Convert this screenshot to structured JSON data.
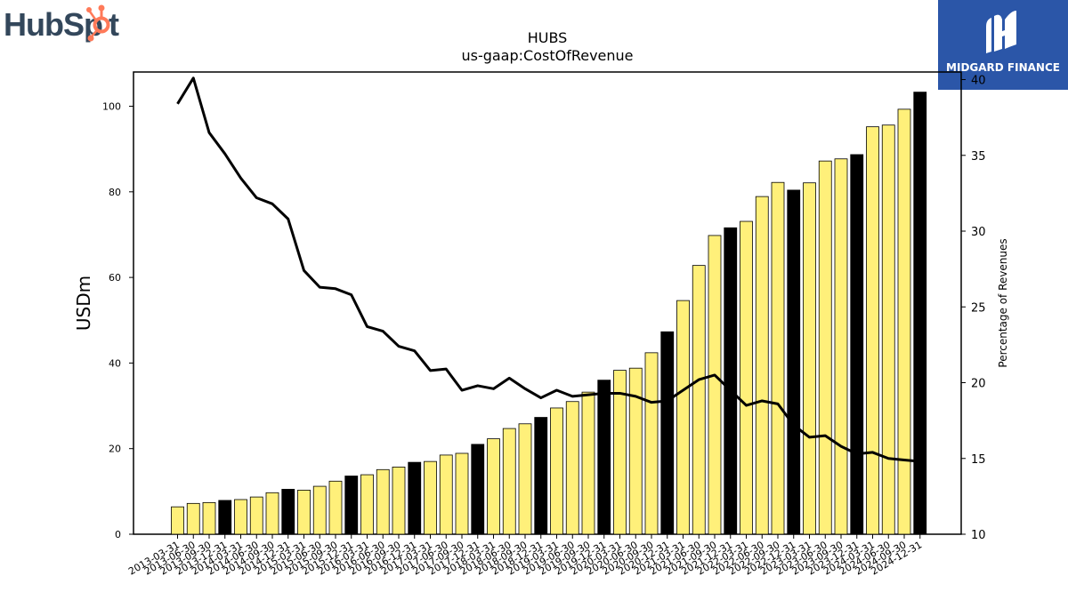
{
  "branding": {
    "hubspot_logo_text": "HubSpot",
    "midgard_logo_text": "MIDGARD FINANCE",
    "midgard_bg": "#2b56a8",
    "hubspot_text_color": "#33475b",
    "hubspot_accent": "#ff7a59"
  },
  "chart_data": {
    "type": "bar",
    "title": "HUBS",
    "subtitle": "us-gaap:CostOfRevenue",
    "ylabel": "USDm",
    "y2label": "Percentage of Revenues",
    "ylim": [
      0,
      108
    ],
    "y2lim": [
      10,
      40.5
    ],
    "yticks": [
      0,
      20,
      40,
      60,
      80,
      100
    ],
    "y2ticks": [
      10,
      15,
      20,
      25,
      30,
      35,
      40
    ],
    "colors": {
      "quarter_bar": "#fff07a",
      "year_end_bar": "#000000",
      "line": "#000000"
    },
    "categories": [
      "2013-03-31",
      "2013-06-30",
      "2013-09-30",
      "2013-12-31",
      "2014-03-31",
      "2014-06-30",
      "2014-09-30",
      "2014-12-31",
      "2015-03-31",
      "2015-06-30",
      "2015-09-30",
      "2015-12-31",
      "2016-03-31",
      "2016-06-30",
      "2016-09-30",
      "2016-12-31",
      "2017-03-31",
      "2017-06-30",
      "2017-09-30",
      "2017-12-31",
      "2018-03-31",
      "2018-06-30",
      "2018-09-30",
      "2018-12-31",
      "2019-03-31",
      "2019-06-30",
      "2019-09-30",
      "2019-12-31",
      "2020-03-31",
      "2020-06-30",
      "2020-09-30",
      "2020-12-31",
      "2021-03-31",
      "2021-06-30",
      "2021-09-30",
      "2021-12-31",
      "2022-03-31",
      "2022-06-30",
      "2022-09-30",
      "2022-12-31",
      "2023-03-31",
      "2023-06-30",
      "2023-09-30",
      "2023-12-31",
      "2024-03-31",
      "2024-06-30",
      "2024-09-30",
      "2024-12-31"
    ],
    "series": [
      {
        "type": "bar",
        "axis": "left",
        "values": [
          6.4,
          7.2,
          7.4,
          7.9,
          8.1,
          8.7,
          9.7,
          10.5,
          10.3,
          11.2,
          12.4,
          13.6,
          13.9,
          15.1,
          15.7,
          16.8,
          17.0,
          18.5,
          18.9,
          21.0,
          22.3,
          24.7,
          25.8,
          27.3,
          29.5,
          31.0,
          33.2,
          36.0,
          38.3,
          38.8,
          42.4,
          47.3,
          54.6,
          62.8,
          69.8,
          71.6,
          73.1,
          78.9,
          82.2,
          80.4,
          82.1,
          87.2,
          87.7,
          88.7,
          95.2,
          95.6,
          99.3,
          103.3
        ],
        "year_end": [
          false,
          false,
          false,
          true,
          false,
          false,
          false,
          true,
          false,
          false,
          false,
          true,
          false,
          false,
          false,
          true,
          false,
          false,
          false,
          true,
          false,
          false,
          false,
          true,
          false,
          false,
          false,
          true,
          false,
          false,
          false,
          true,
          false,
          false,
          false,
          true,
          false,
          false,
          false,
          true,
          false,
          false,
          false,
          true,
          false,
          false,
          false,
          true
        ]
      },
      {
        "type": "line",
        "axis": "right",
        "values": [
          38.4,
          40.1,
          36.5,
          35.1,
          33.5,
          32.2,
          31.8,
          30.8,
          27.4,
          26.3,
          26.2,
          25.8,
          23.7,
          23.4,
          22.4,
          22.1,
          20.8,
          20.9,
          19.5,
          19.8,
          19.6,
          20.3,
          19.6,
          19.0,
          19.5,
          19.1,
          19.2,
          19.3,
          19.3,
          19.1,
          18.7,
          18.8,
          19.5,
          20.2,
          20.5,
          19.5,
          18.5,
          18.8,
          18.6,
          17.2,
          16.4,
          16.5,
          15.8,
          15.3,
          15.4,
          15.0,
          14.9,
          14.8
        ]
      }
    ]
  }
}
